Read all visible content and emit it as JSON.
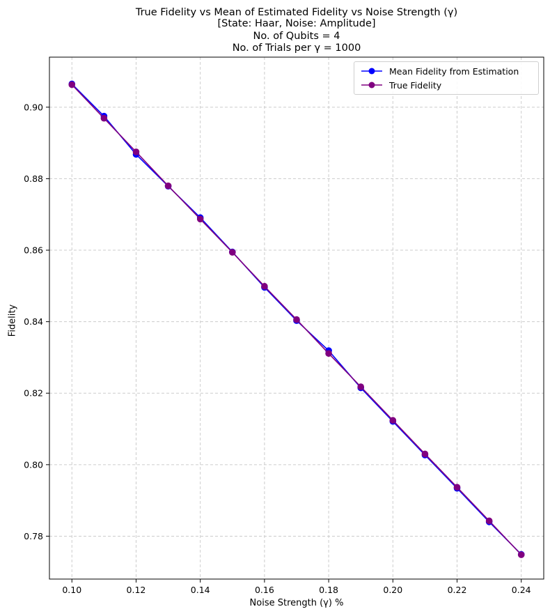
{
  "chart_data": {
    "type": "line",
    "title": [
      "True Fidelity vs Mean of Estimated Fidelity vs Noise Strength (γ)",
      "[State: Haar, Noise: Amplitude]",
      "No. of Qubits = 4",
      "No. of Trials per γ = 1000"
    ],
    "xlabel": "Noise Strength (γ) %",
    "ylabel": "Fidelity",
    "xlim": [
      0.093,
      0.247
    ],
    "ylim": [
      0.768,
      0.914
    ],
    "xticks": [
      "0.10",
      "0.12",
      "0.14",
      "0.16",
      "0.18",
      "0.20",
      "0.22",
      "0.24"
    ],
    "xtick_values": [
      0.1,
      0.12,
      0.14,
      0.16,
      0.18,
      0.2,
      0.22,
      0.24
    ],
    "yticks": [
      "0.78",
      "0.80",
      "0.82",
      "0.84",
      "0.86",
      "0.88",
      "0.90"
    ],
    "ytick_values": [
      0.78,
      0.8,
      0.82,
      0.84,
      0.86,
      0.88,
      0.9
    ],
    "grid": true,
    "legend_position": "top-right",
    "x": [
      0.1,
      0.11,
      0.12,
      0.13,
      0.14,
      0.15,
      0.16,
      0.17,
      0.18,
      0.19,
      0.2,
      0.21,
      0.22,
      0.23,
      0.24
    ],
    "series": [
      {
        "name": "Mean Fidelity from Estimation",
        "color": "#0000ff",
        "values": [
          0.9065,
          0.8975,
          0.8868,
          0.8779,
          0.8691,
          0.8595,
          0.8496,
          0.8403,
          0.8319,
          0.8215,
          0.8121,
          0.8027,
          0.7934,
          0.784,
          0.7749
        ]
      },
      {
        "name": "True Fidelity",
        "color": "#800080",
        "values": [
          0.9063,
          0.8969,
          0.8875,
          0.878,
          0.8687,
          0.8594,
          0.8499,
          0.8406,
          0.8311,
          0.8218,
          0.8124,
          0.803,
          0.7937,
          0.7843,
          0.7748
        ]
      }
    ]
  }
}
